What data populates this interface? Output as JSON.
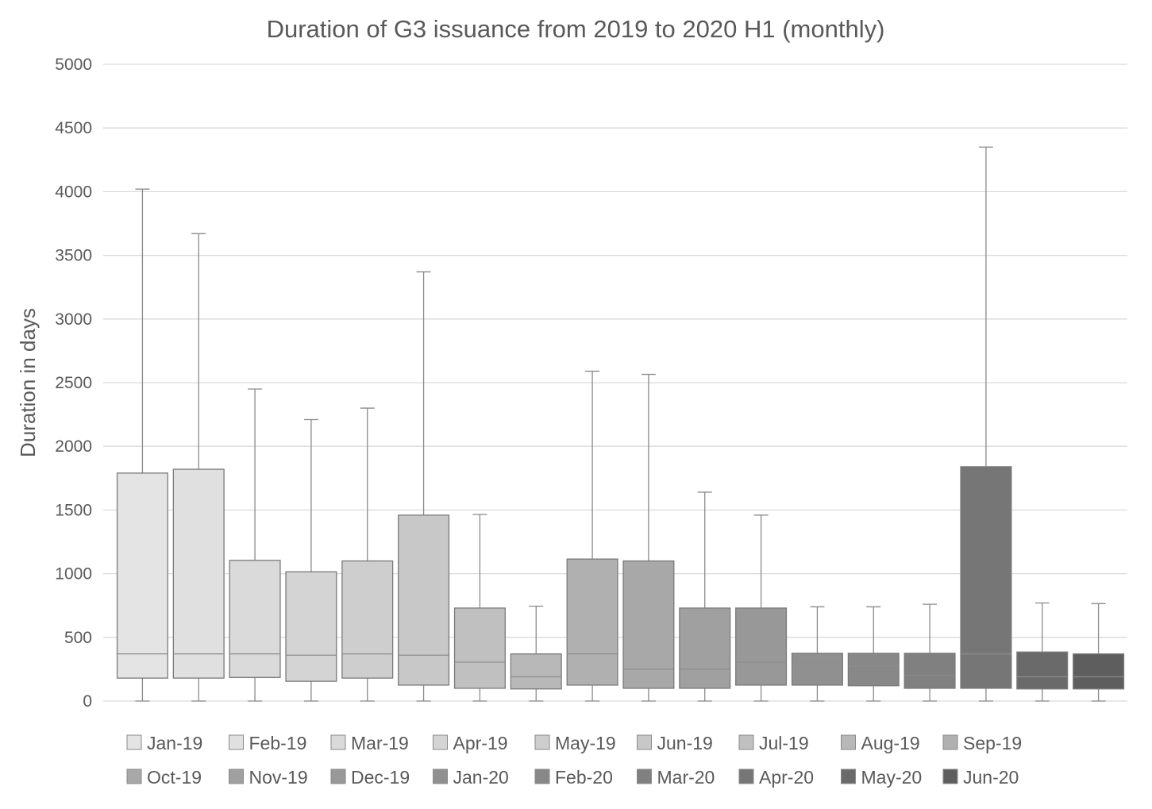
{
  "chart_data": {
    "type": "box",
    "title": "Duration of G3 issuance from 2019 to 2020 H1 (monthly)",
    "xlabel": "",
    "ylabel": "Duration in days",
    "ylim": [
      0,
      5000
    ],
    "yticks": [
      0,
      500,
      1000,
      1500,
      2000,
      2500,
      3000,
      3500,
      4000,
      4500,
      5000
    ],
    "grid": true,
    "legend_position": "bottom",
    "series": [
      {
        "name": "Jan-19",
        "min": 0,
        "q1": 180,
        "median": 370,
        "q3": 1790,
        "max": 4020,
        "color": "#e4e4e4"
      },
      {
        "name": "Feb-19",
        "min": 0,
        "q1": 180,
        "median": 370,
        "q3": 1820,
        "max": 3670,
        "color": "#e0e0e0"
      },
      {
        "name": "Mar-19",
        "min": 0,
        "q1": 185,
        "median": 370,
        "q3": 1105,
        "max": 2450,
        "color": "#dadada"
      },
      {
        "name": "Apr-19",
        "min": 0,
        "q1": 155,
        "median": 360,
        "q3": 1015,
        "max": 2210,
        "color": "#d4d4d4"
      },
      {
        "name": "May-19",
        "min": 0,
        "q1": 180,
        "median": 370,
        "q3": 1100,
        "max": 2300,
        "color": "#cecece"
      },
      {
        "name": "Jun-19",
        "min": 0,
        "q1": 125,
        "median": 360,
        "q3": 1460,
        "max": 3370,
        "color": "#c8c8c8"
      },
      {
        "name": "Jul-19",
        "min": 0,
        "q1": 100,
        "median": 305,
        "q3": 730,
        "max": 1465,
        "color": "#c0c0c0"
      },
      {
        "name": "Aug-19",
        "min": 0,
        "q1": 95,
        "median": 190,
        "q3": 370,
        "max": 745,
        "color": "#b8b8b8"
      },
      {
        "name": "Sep-19",
        "min": 0,
        "q1": 125,
        "median": 370,
        "q3": 1115,
        "max": 2590,
        "color": "#b0b0b0"
      },
      {
        "name": "Oct-19",
        "min": 0,
        "q1": 100,
        "median": 250,
        "q3": 1100,
        "max": 2565,
        "color": "#a8a8a8"
      },
      {
        "name": "Nov-19",
        "min": 0,
        "q1": 100,
        "median": 250,
        "q3": 730,
        "max": 1640,
        "color": "#a0a0a0"
      },
      {
        "name": "Dec-19",
        "min": 0,
        "q1": 125,
        "median": 305,
        "q3": 730,
        "max": 1460,
        "color": "#989898"
      },
      {
        "name": "Jan-20",
        "min": 0,
        "q1": 125,
        "median": 305,
        "q3": 375,
        "max": 740,
        "color": "#909090"
      },
      {
        "name": "Feb-20",
        "min": 0,
        "q1": 120,
        "median": 275,
        "q3": 375,
        "max": 740,
        "color": "#888888"
      },
      {
        "name": "Mar-20",
        "min": 0,
        "q1": 100,
        "median": 200,
        "q3": 375,
        "max": 760,
        "color": "#808080"
      },
      {
        "name": "Apr-20",
        "min": 0,
        "q1": 100,
        "median": 370,
        "q3": 1840,
        "max": 4350,
        "color": "#767676"
      },
      {
        "name": "May-20",
        "min": 0,
        "q1": 95,
        "median": 190,
        "q3": 385,
        "max": 770,
        "color": "#6a6a6a"
      },
      {
        "name": "Jun-20",
        "min": 0,
        "q1": 95,
        "median": 190,
        "q3": 370,
        "max": 765,
        "color": "#5e5e5e"
      }
    ]
  }
}
